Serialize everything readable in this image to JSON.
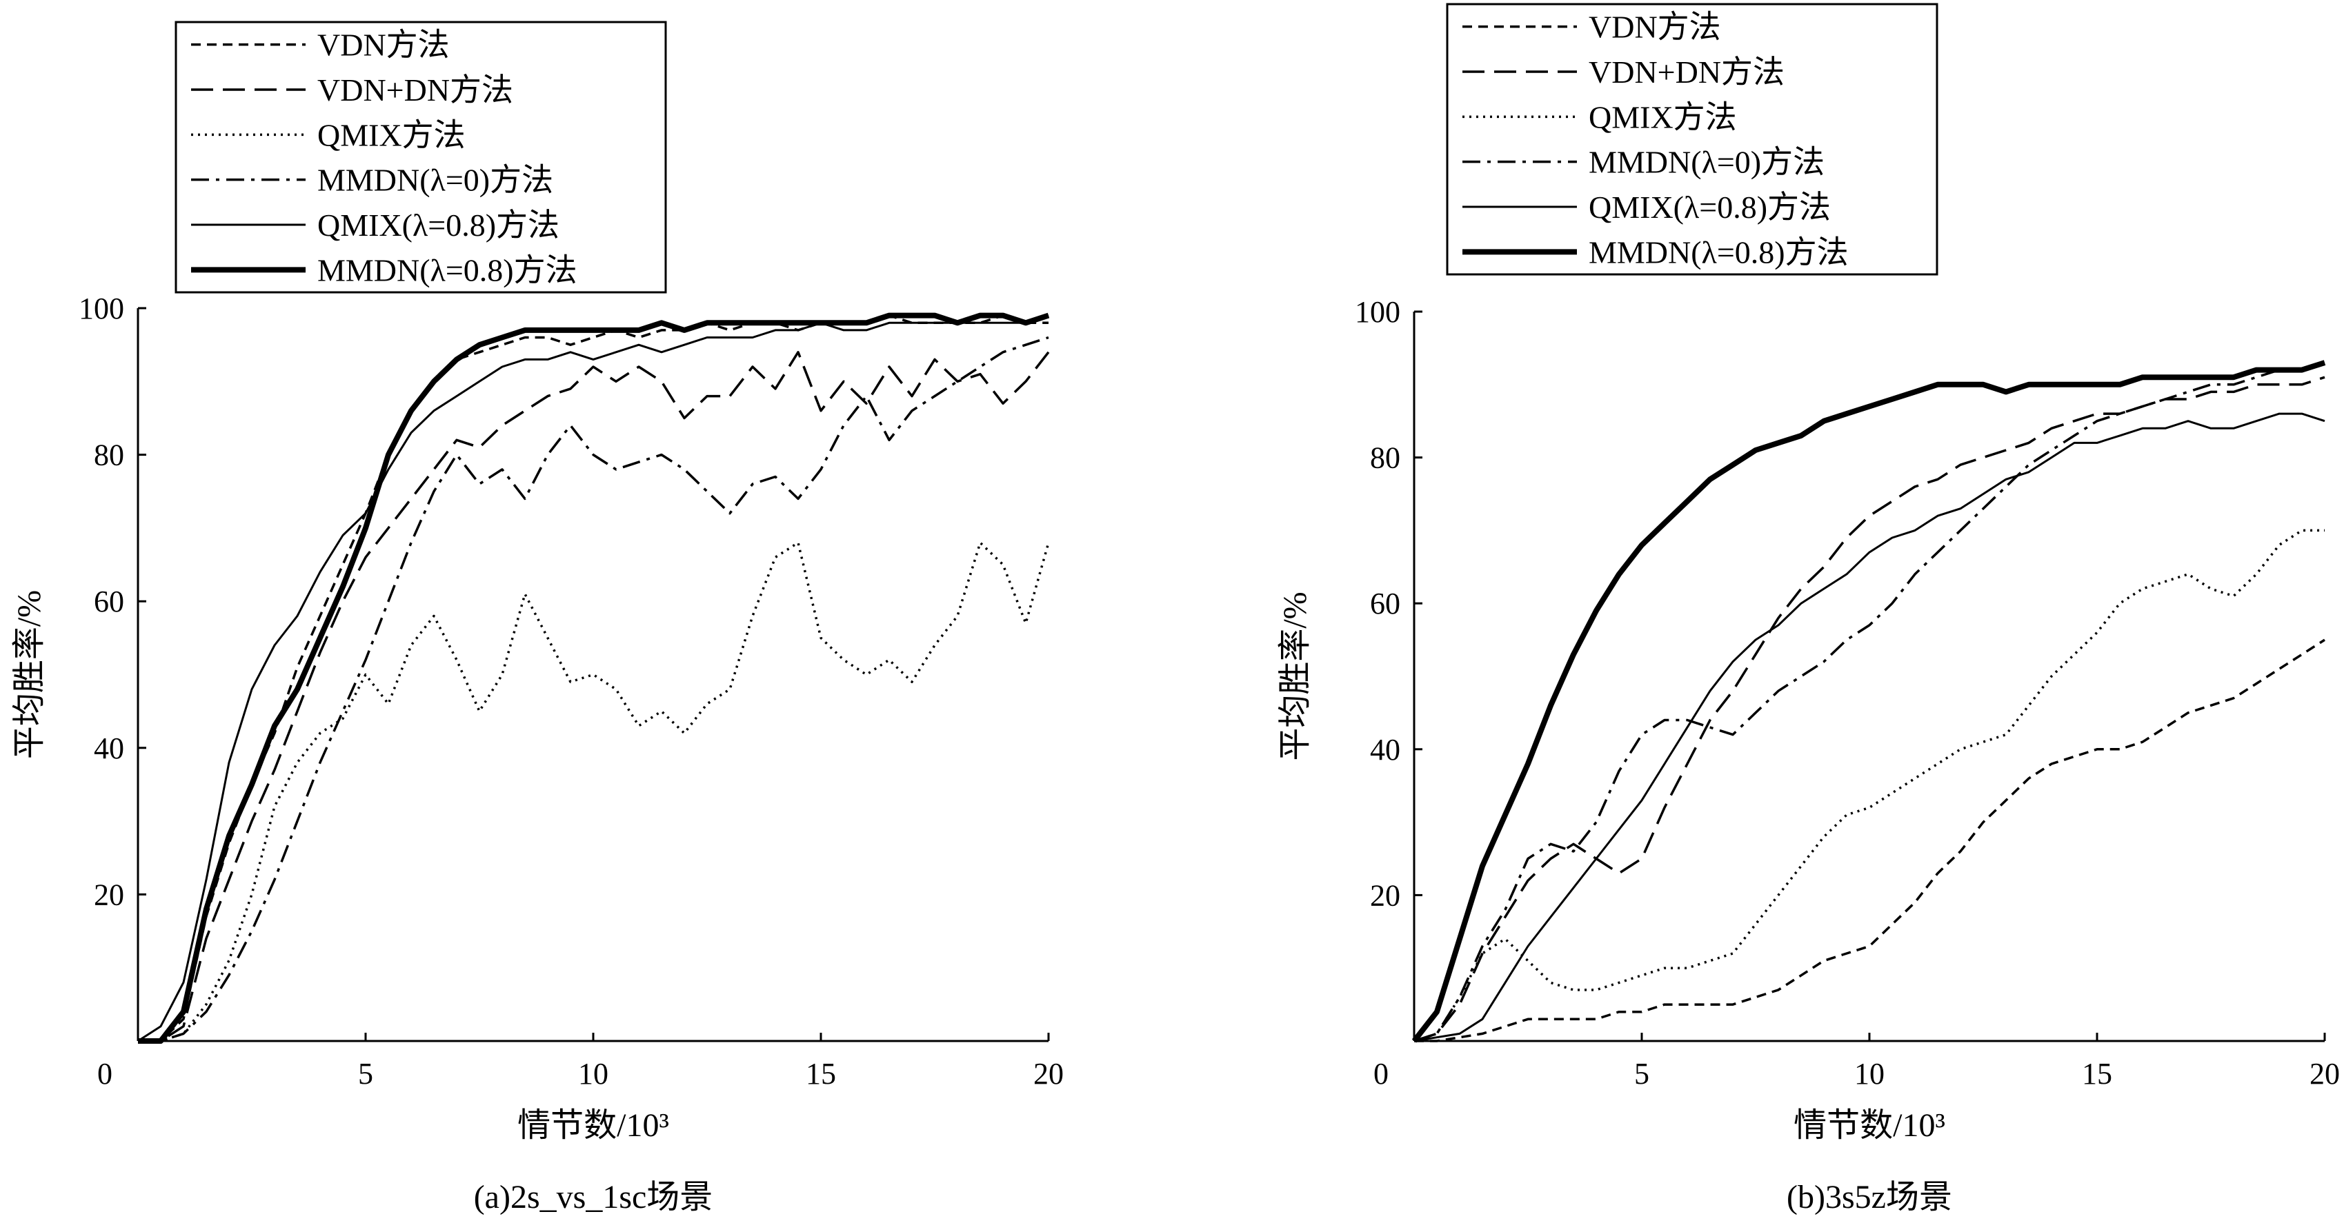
{
  "chart_data": [
    {
      "type": "line",
      "caption": "(a)2s_vs_1sc场景",
      "xlabel": "情节数/10³",
      "ylabel": "平均胜率/%",
      "xlim": [
        0,
        20
      ],
      "ylim": [
        0,
        100
      ],
      "xticks": [
        "0",
        "5",
        "10",
        "15",
        "20"
      ],
      "yticks": [
        "20",
        "40",
        "60",
        "80",
        "100"
      ],
      "legend_position": "top-left-outside",
      "series": [
        {
          "name": "VDN方法",
          "style": "dashed",
          "x": [
            0,
            0.5,
            1,
            1.5,
            2,
            2.5,
            3,
            3.5,
            4,
            4.5,
            5,
            5.5,
            6,
            6.5,
            7,
            7.5,
            8,
            8.5,
            9,
            9.5,
            10,
            10.5,
            11,
            11.5,
            12,
            12.5,
            13,
            13.5,
            14,
            14.5,
            15,
            15.5,
            16,
            16.5,
            17,
            17.5,
            18,
            18.5,
            19,
            19.5,
            20
          ],
          "y": [
            0,
            0,
            3,
            17,
            27,
            35,
            42,
            51,
            58,
            65,
            72,
            80,
            86,
            90,
            93,
            94,
            95,
            96,
            96,
            95,
            96,
            97,
            96,
            97,
            97,
            98,
            97,
            98,
            98,
            97,
            98,
            98,
            98,
            99,
            98,
            98,
            98,
            98,
            99,
            98,
            98
          ]
        },
        {
          "name": "VDN+DN方法",
          "style": "long-dash",
          "x": [
            0,
            0.5,
            1,
            1.5,
            2,
            2.5,
            3,
            3.5,
            4,
            4.5,
            5,
            5.5,
            6,
            6.5,
            7,
            7.5,
            8,
            8.5,
            9,
            9.5,
            10,
            10.5,
            11,
            11.5,
            12,
            12.5,
            13,
            13.5,
            14,
            14.5,
            15,
            15.5,
            16,
            16.5,
            17,
            17.5,
            18,
            18.5,
            19,
            19.5,
            20
          ],
          "y": [
            0,
            0,
            2,
            14,
            22,
            30,
            37,
            45,
            53,
            60,
            66,
            70,
            74,
            78,
            82,
            81,
            84,
            86,
            88,
            89,
            92,
            90,
            92,
            90,
            85,
            88,
            88,
            92,
            89,
            94,
            86,
            90,
            87,
            92,
            88,
            93,
            90,
            91,
            87,
            90,
            94
          ]
        },
        {
          "name": "QMIX方法",
          "style": "dotted",
          "x": [
            0,
            0.5,
            1,
            1.5,
            2,
            2.5,
            3,
            3.5,
            4,
            4.5,
            5,
            5.5,
            6,
            6.5,
            7,
            7.5,
            8,
            8.5,
            9,
            9.5,
            10,
            10.5,
            11,
            11.5,
            12,
            12.5,
            13,
            13.5,
            14,
            14.5,
            15,
            15.5,
            16,
            16.5,
            17,
            17.5,
            18,
            18.5,
            19,
            19.5,
            20
          ],
          "y": [
            0,
            0,
            1,
            5,
            11,
            20,
            32,
            38,
            42,
            44,
            50,
            46,
            54,
            58,
            52,
            45,
            50,
            61,
            55,
            49,
            50,
            48,
            43,
            45,
            42,
            46,
            48,
            58,
            66,
            68,
            55,
            52,
            50,
            52,
            49,
            54,
            58,
            68,
            65,
            57,
            68
          ]
        },
        {
          "name": "MMDN(λ=0)方法",
          "style": "dash-dot",
          "x": [
            0,
            0.5,
            1,
            1.5,
            2,
            2.5,
            3,
            3.5,
            4,
            4.5,
            5,
            5.5,
            6,
            6.5,
            7,
            7.5,
            8,
            8.5,
            9,
            9.5,
            10,
            10.5,
            11,
            11.5,
            12,
            12.5,
            13,
            13.5,
            14,
            14.5,
            15,
            15.5,
            16,
            16.5,
            17,
            17.5,
            18,
            18.5,
            19,
            19.5,
            20
          ],
          "y": [
            0,
            0,
            1,
            4,
            9,
            15,
            22,
            30,
            38,
            45,
            52,
            60,
            68,
            75,
            80,
            76,
            78,
            74,
            80,
            84,
            80,
            78,
            79,
            80,
            78,
            75,
            72,
            76,
            77,
            74,
            78,
            84,
            88,
            82,
            86,
            88,
            90,
            92,
            94,
            95,
            96
          ]
        },
        {
          "name": "QMIX(λ=0.8)方法",
          "style": "thin-solid",
          "x": [
            0,
            0.5,
            1,
            1.5,
            2,
            2.5,
            3,
            3.5,
            4,
            4.5,
            5,
            5.5,
            6,
            6.5,
            7,
            7.5,
            8,
            8.5,
            9,
            9.5,
            10,
            10.5,
            11,
            11.5,
            12,
            12.5,
            13,
            13.5,
            14,
            14.5,
            15,
            15.5,
            16,
            16.5,
            17,
            17.5,
            18,
            18.5,
            19,
            19.5,
            20
          ],
          "y": [
            0,
            2,
            8,
            22,
            38,
            48,
            54,
            58,
            64,
            69,
            72,
            78,
            83,
            86,
            88,
            90,
            92,
            93,
            93,
            94,
            93,
            94,
            95,
            94,
            95,
            96,
            96,
            96,
            97,
            97,
            98,
            97,
            97,
            98,
            98,
            98,
            98,
            98,
            98,
            98,
            99
          ]
        },
        {
          "name": "MMDN(λ=0.8)方法",
          "style": "thick-solid",
          "x": [
            0,
            0.5,
            1,
            1.5,
            2,
            2.5,
            3,
            3.5,
            4,
            4.5,
            5,
            5.5,
            6,
            6.5,
            7,
            7.5,
            8,
            8.5,
            9,
            9.5,
            10,
            10.5,
            11,
            11.5,
            12,
            12.5,
            13,
            13.5,
            14,
            14.5,
            15,
            15.5,
            16,
            16.5,
            17,
            17.5,
            18,
            18.5,
            19,
            19.5,
            20
          ],
          "y": [
            0,
            0,
            4,
            18,
            28,
            35,
            43,
            48,
            55,
            62,
            70,
            80,
            86,
            90,
            93,
            95,
            96,
            97,
            97,
            97,
            97,
            97,
            97,
            98,
            97,
            98,
            98,
            98,
            98,
            98,
            98,
            98,
            98,
            99,
            99,
            99,
            98,
            99,
            99,
            98,
            99
          ]
        }
      ]
    },
    {
      "type": "line",
      "caption": "(b)3s5z场景",
      "xlabel": "情节数/10³",
      "ylabel": "平均胜率/%",
      "xlim": [
        0,
        20
      ],
      "ylim": [
        0,
        100
      ],
      "xticks": [
        "0",
        "5",
        "10",
        "15",
        "20"
      ],
      "yticks": [
        "20",
        "40",
        "60",
        "80",
        "100"
      ],
      "legend_position": "top-left-outside",
      "series": [
        {
          "name": "VDN方法",
          "style": "dashed",
          "x": [
            0,
            0.5,
            1,
            1.5,
            2,
            2.5,
            3,
            3.5,
            4,
            4.5,
            5,
            5.5,
            6,
            6.5,
            7,
            7.5,
            8,
            8.5,
            9,
            9.5,
            10,
            10.5,
            11,
            11.5,
            12,
            12.5,
            13,
            13.5,
            14,
            14.5,
            15,
            15.5,
            16,
            16.5,
            17,
            17.5,
            18,
            18.5,
            19,
            19.5,
            20
          ],
          "y": [
            0,
            0,
            0.5,
            1,
            2,
            3,
            3,
            3,
            3,
            4,
            4,
            5,
            5,
            5,
            5,
            6,
            7,
            9,
            11,
            12,
            13,
            16,
            19,
            23,
            26,
            30,
            33,
            36,
            38,
            39,
            40,
            40,
            41,
            43,
            45,
            46,
            47,
            49,
            51,
            53,
            55
          ]
        },
        {
          "name": "VDN+DN方法",
          "style": "long-dash",
          "x": [
            0,
            0.5,
            1,
            1.5,
            2,
            2.5,
            3,
            3.5,
            4,
            4.5,
            5,
            5.5,
            6,
            6.5,
            7,
            7.5,
            8,
            8.5,
            9,
            9.5,
            10,
            10.5,
            11,
            11.5,
            12,
            12.5,
            13,
            13.5,
            14,
            14.5,
            15,
            15.5,
            16,
            16.5,
            17,
            17.5,
            18,
            18.5,
            19,
            19.5,
            20
          ],
          "y": [
            0,
            1,
            5,
            12,
            17,
            22,
            25,
            27,
            25,
            23,
            25,
            32,
            38,
            44,
            48,
            53,
            58,
            62,
            65,
            69,
            72,
            74,
            76,
            77,
            79,
            80,
            81,
            82,
            84,
            85,
            86,
            86,
            87,
            88,
            88,
            89,
            89,
            90,
            90,
            90,
            91
          ]
        },
        {
          "name": "QMIX方法",
          "style": "dotted",
          "x": [
            0,
            0.5,
            1,
            1.5,
            2,
            2.5,
            3,
            3.5,
            4,
            4.5,
            5,
            5.5,
            6,
            6.5,
            7,
            7.5,
            8,
            8.5,
            9,
            9.5,
            10,
            10.5,
            11,
            11.5,
            12,
            12.5,
            13,
            13.5,
            14,
            14.5,
            15,
            15.5,
            16,
            16.5,
            17,
            17.5,
            18,
            18.5,
            19,
            19.5,
            20
          ],
          "y": [
            0,
            1,
            6,
            12,
            14,
            11,
            8,
            7,
            7,
            8,
            9,
            10,
            10,
            11,
            12,
            16,
            20,
            24,
            28,
            31,
            32,
            34,
            36,
            38,
            40,
            41,
            42,
            46,
            50,
            53,
            56,
            60,
            62,
            63,
            64,
            62,
            61,
            64,
            68,
            70,
            70
          ]
        },
        {
          "name": "MMDN(λ=0)方法",
          "style": "dash-dot",
          "x": [
            0,
            0.5,
            1,
            1.5,
            2,
            2.5,
            3,
            3.5,
            4,
            4.5,
            5,
            5.5,
            6,
            6.5,
            7,
            7.5,
            8,
            8.5,
            9,
            9.5,
            10,
            10.5,
            11,
            11.5,
            12,
            12.5,
            13,
            13.5,
            14,
            14.5,
            15,
            15.5,
            16,
            16.5,
            17,
            17.5,
            18,
            18.5,
            19,
            19.5,
            20
          ],
          "y": [
            0,
            1,
            6,
            13,
            18,
            25,
            27,
            26,
            30,
            37,
            42,
            44,
            44,
            43,
            42,
            45,
            48,
            50,
            52,
            55,
            57,
            60,
            64,
            67,
            70,
            73,
            76,
            79,
            81,
            83,
            85,
            86,
            87,
            88,
            89,
            90,
            90,
            91,
            92,
            92,
            93
          ]
        },
        {
          "name": "QMIX(λ=0.8)方法",
          "style": "thin-solid",
          "x": [
            0,
            0.5,
            1,
            1.5,
            2,
            2.5,
            3,
            3.5,
            4,
            4.5,
            5,
            5.5,
            6,
            6.5,
            7,
            7.5,
            8,
            8.5,
            9,
            9.5,
            10,
            10.5,
            11,
            11.5,
            12,
            12.5,
            13,
            13.5,
            14,
            14.5,
            15,
            15.5,
            16,
            16.5,
            17,
            17.5,
            18,
            18.5,
            19,
            19.5,
            20
          ],
          "y": [
            0,
            0.5,
            1,
            3,
            8,
            13,
            17,
            21,
            25,
            29,
            33,
            38,
            43,
            48,
            52,
            55,
            57,
            60,
            62,
            64,
            67,
            69,
            70,
            72,
            73,
            75,
            77,
            78,
            80,
            82,
            82,
            83,
            84,
            84,
            85,
            84,
            84,
            85,
            86,
            86,
            85
          ]
        },
        {
          "name": "MMDN(λ=0.8)方法",
          "style": "thick-solid",
          "x": [
            0,
            0.5,
            1,
            1.5,
            2,
            2.5,
            3,
            3.5,
            4,
            4.5,
            5,
            5.5,
            6,
            6.5,
            7,
            7.5,
            8,
            8.5,
            9,
            9.5,
            10,
            10.5,
            11,
            11.5,
            12,
            12.5,
            13,
            13.5,
            14,
            14.5,
            15,
            15.5,
            16,
            16.5,
            17,
            17.5,
            18,
            18.5,
            19,
            19.5,
            20
          ],
          "y": [
            0,
            4,
            14,
            24,
            31,
            38,
            46,
            53,
            59,
            64,
            68,
            71,
            74,
            77,
            79,
            81,
            82,
            83,
            85,
            86,
            87,
            88,
            89,
            90,
            90,
            90,
            89,
            90,
            90,
            90,
            90,
            90,
            91,
            91,
            91,
            91,
            91,
            92,
            92,
            92,
            93
          ]
        }
      ]
    }
  ]
}
